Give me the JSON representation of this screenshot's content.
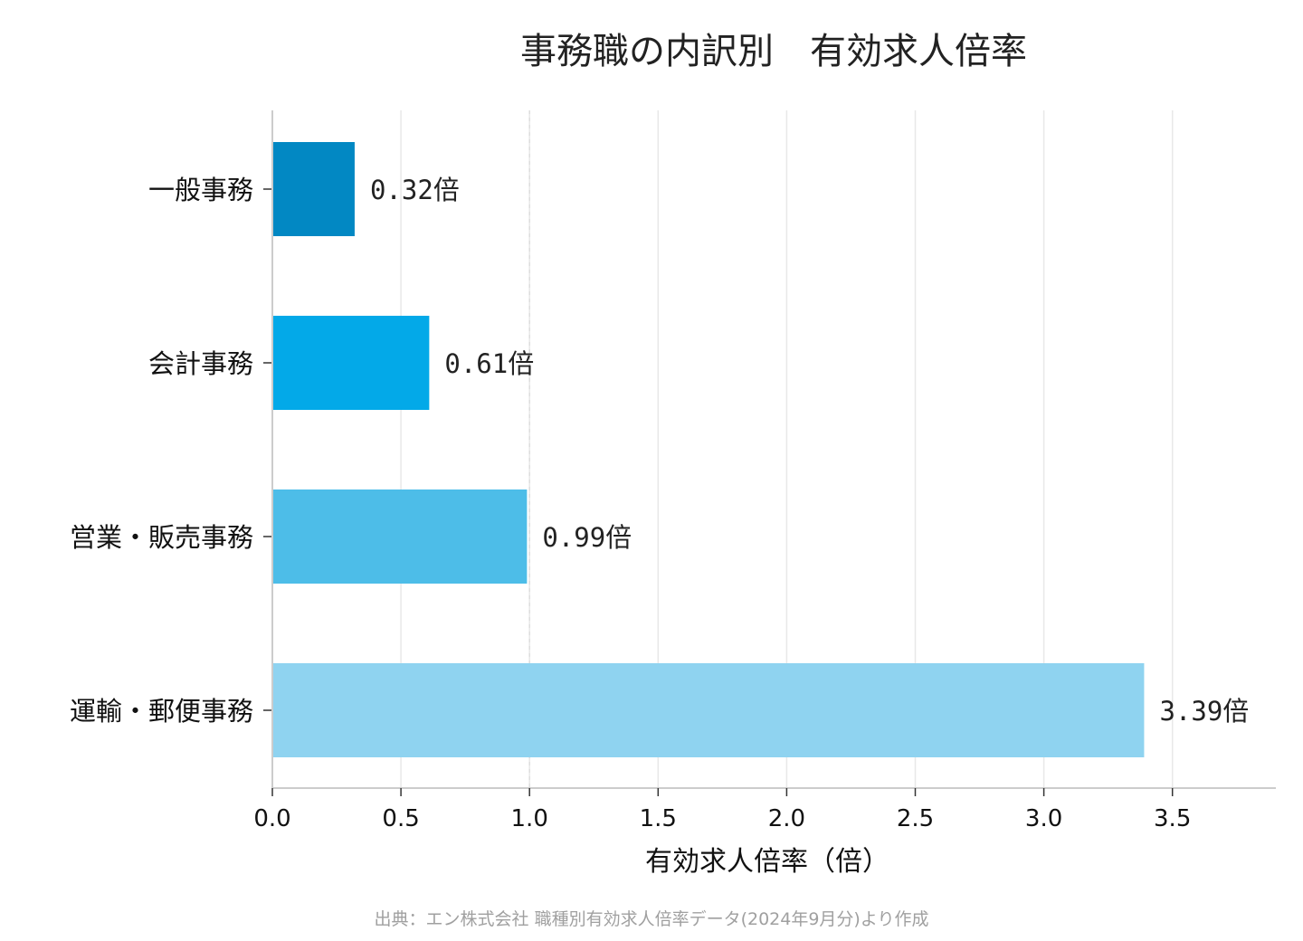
{
  "chart_data": {
    "type": "bar",
    "orientation": "horizontal",
    "title": "事務職の内訳別　有効求人倍率",
    "xlabel": "有効求人倍率（倍）",
    "ylabel": "",
    "xlim": [
      0,
      3.9
    ],
    "grid": "vertical",
    "reference_line": 1.0,
    "categories": [
      "一般事務",
      "会計事務",
      "営業・販売事務",
      "運輸・郵便事務"
    ],
    "values": [
      0.32,
      0.61,
      0.99,
      3.39
    ],
    "value_labels": [
      "0.32倍",
      "0.61倍",
      "0.99倍",
      "3.39倍"
    ],
    "colors": [
      "#0288c3",
      "#03a9e8",
      "#4dbde8",
      "#8fd3f0"
    ],
    "x_ticks": [
      0.0,
      0.5,
      1.0,
      1.5,
      2.0,
      2.5,
      3.0,
      3.5
    ],
    "x_tick_labels": [
      "0.0",
      "0.5",
      "1.0",
      "1.5",
      "2.0",
      "2.5",
      "3.0",
      "3.5"
    ]
  },
  "source_note": "出典：エン株式会社 職種別有効求人倍率データ(2024年9月分)より作成"
}
